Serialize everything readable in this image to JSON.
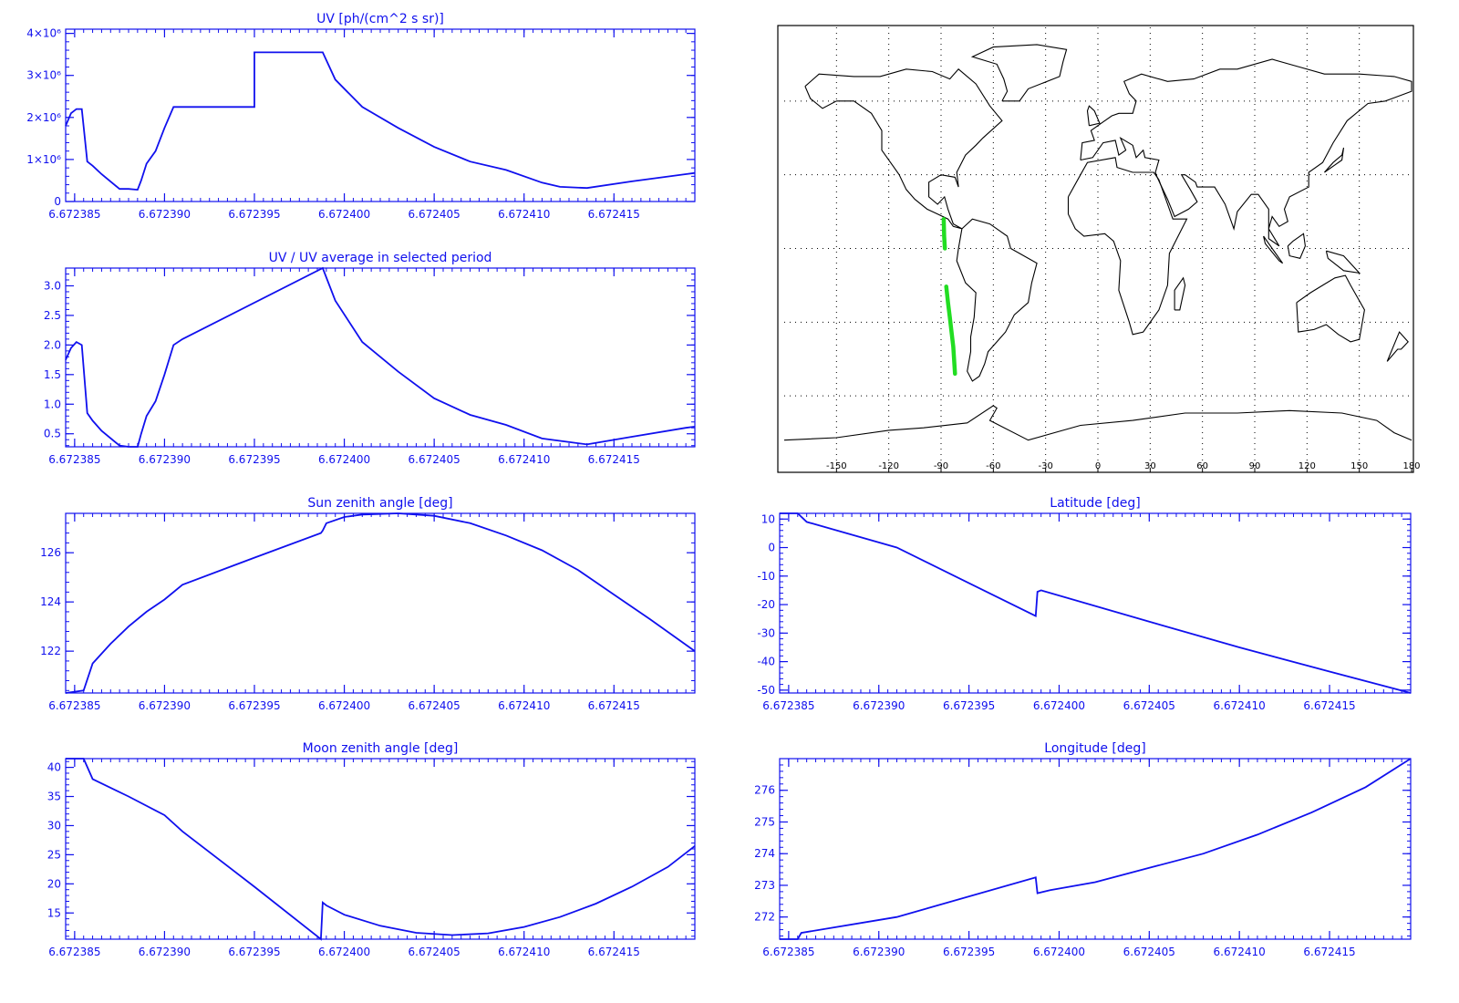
{
  "colors": {
    "line": "#1010ee",
    "axis": "#1010ee",
    "map_line": "#000000",
    "track": "#22dd22",
    "grid": "#000000"
  },
  "x_tick_labels": [
    "6.672385",
    "6.672390",
    "6.672395",
    "6.672400",
    "6.672405",
    "6.672410",
    "6.672415"
  ],
  "chart_data": [
    {
      "id": "uv",
      "type": "line",
      "title": "UV [ph/(cm^2 s sr)]",
      "x": [
        6.6723845,
        6.6723848,
        6.6723851,
        6.6723854,
        6.6723857,
        6.672386,
        6.6723865,
        6.6723875,
        6.672388,
        6.6723885,
        6.6723887,
        6.672389,
        6.6723895,
        6.67239,
        6.6723905,
        6.672391,
        6.672395,
        6.672395,
        6.6723988,
        6.6723995,
        6.672401,
        6.672403,
        6.672405,
        6.672407,
        6.672409,
        6.672411,
        6.672412,
        6.6724135,
        6.672416,
        6.672419,
        6.6724195
      ],
      "y": [
        1800000.0,
        2100000.0,
        2200000.0,
        2200000.0,
        950000.0,
        850000.0,
        650000.0,
        300000.0,
        300000.0,
        280000.0,
        500000.0,
        900000.0,
        1200000.0,
        1750000.0,
        2250000.0,
        2250000.0,
        2250000.0,
        3550000.0,
        3550000.0,
        2900000.0,
        2250000.0,
        1750000.0,
        1300000.0,
        950000.0,
        750000.0,
        450000.0,
        350000.0,
        320000.0,
        480000.0,
        650000.0,
        680000.0
      ],
      "xlim": [
        6.6723845,
        6.6724195
      ],
      "ylim": [
        0,
        4100000.0
      ],
      "yticks": [
        0,
        1000000.0,
        2000000.0,
        3000000.0,
        4000000.0
      ],
      "ytick_labels": [
        "0",
        "1×10⁶",
        "2×10⁶",
        "3×10⁶",
        "4×10⁶"
      ]
    },
    {
      "id": "uvratio",
      "type": "line",
      "title": "UV / UV average in selected period",
      "x": [
        6.6723845,
        6.6723848,
        6.6723851,
        6.6723854,
        6.6723857,
        6.672386,
        6.6723865,
        6.6723875,
        6.672388,
        6.6723885,
        6.6723887,
        6.672389,
        6.6723895,
        6.67239,
        6.6723905,
        6.672391,
        6.6723988,
        6.6723995,
        6.672401,
        6.672403,
        6.672405,
        6.672407,
        6.672409,
        6.672411,
        6.672412,
        6.6724135,
        6.672416,
        6.672419,
        6.6724195
      ],
      "y": [
        1.75,
        1.95,
        2.05,
        2.0,
        0.85,
        0.72,
        0.55,
        0.3,
        0.28,
        0.28,
        0.5,
        0.8,
        1.05,
        1.5,
        2.0,
        2.1,
        3.3,
        2.75,
        2.05,
        1.55,
        1.1,
        0.82,
        0.65,
        0.42,
        0.38,
        0.32,
        0.45,
        0.6,
        0.62
      ],
      "xlim": [
        6.6723845,
        6.6724195
      ],
      "ylim": [
        0.28,
        3.3
      ],
      "yticks": [
        0.5,
        1.0,
        1.5,
        2.0,
        2.5,
        3.0
      ],
      "ytick_labels": [
        "0.5",
        "1.0",
        "1.5",
        "2.0",
        "2.5",
        "3.0"
      ]
    },
    {
      "id": "sunzen",
      "type": "line",
      "title": "Sun zenith angle [deg]",
      "x": [
        6.6723845,
        6.6723855,
        6.672386,
        6.672387,
        6.672388,
        6.672389,
        6.67239,
        6.672391,
        6.672395,
        6.6723987,
        6.6723988,
        6.672399,
        6.6724,
        6.672401,
        6.672403,
        6.672405,
        6.672407,
        6.672409,
        6.672411,
        6.672413,
        6.672415,
        6.672417,
        6.6724195
      ],
      "y": [
        120.3,
        120.4,
        121.5,
        122.3,
        123.0,
        123.6,
        124.1,
        124.7,
        125.8,
        126.8,
        126.9,
        127.2,
        127.45,
        127.55,
        127.6,
        127.5,
        127.2,
        126.7,
        126.1,
        125.3,
        124.3,
        123.3,
        122.0
      ],
      "xlim": [
        6.6723845,
        6.6724195
      ],
      "ylim": [
        120.3,
        127.6
      ],
      "yticks": [
        122,
        124,
        126
      ],
      "ytick_labels": [
        "122",
        "124",
        "126"
      ]
    },
    {
      "id": "moonzen",
      "type": "line",
      "title": "Moon zenith angle [deg]",
      "x": [
        6.6723845,
        6.6723855,
        6.672386,
        6.672388,
        6.67239,
        6.672391,
        6.672395,
        6.6723987,
        6.6723988,
        6.672399,
        6.6724,
        6.672402,
        6.672404,
        6.672406,
        6.672408,
        6.67241,
        6.672412,
        6.672414,
        6.672416,
        6.672418,
        6.6724195
      ],
      "y": [
        41.5,
        41.5,
        38.0,
        35.0,
        31.8,
        29.0,
        19.5,
        10.5,
        16.8,
        16.3,
        14.7,
        12.8,
        11.6,
        11.2,
        11.5,
        12.6,
        14.3,
        16.6,
        19.5,
        22.9,
        26.5
      ],
      "xlim": [
        6.6723845,
        6.6724195
      ],
      "ylim": [
        10.5,
        41.5
      ],
      "yticks": [
        15,
        20,
        25,
        30,
        35,
        40
      ],
      "ytick_labels": [
        "15",
        "20",
        "25",
        "30",
        "35",
        "40"
      ]
    },
    {
      "id": "lat",
      "type": "line",
      "title": "Latitude [deg]",
      "x": [
        6.6723845,
        6.6723855,
        6.672386,
        6.672391,
        6.6723987,
        6.6723988,
        6.672399,
        6.672405,
        6.67241,
        6.672415,
        6.6724195
      ],
      "y": [
        12.0,
        12.0,
        9.0,
        0.0,
        -24.0,
        -15.5,
        -15.0,
        -26.0,
        -35.0,
        -43.5,
        -51.0
      ],
      "xlim": [
        6.6723845,
        6.6724195
      ],
      "ylim": [
        -51.0,
        12.0
      ],
      "yticks": [
        -50,
        -40,
        -30,
        -20,
        -10,
        0,
        10
      ],
      "ytick_labels": [
        "-50",
        "-40",
        "-30",
        "-20",
        "-10",
        "0",
        "10"
      ]
    },
    {
      "id": "lon",
      "type": "line",
      "title": "Longitude [deg]",
      "x": [
        6.6723845,
        6.6723855,
        6.6723857,
        6.672391,
        6.6723987,
        6.6723988,
        6.6723995,
        6.672402,
        6.672405,
        6.672408,
        6.672411,
        6.672414,
        6.672417,
        6.6724195
      ],
      "y": [
        271.3,
        271.3,
        271.5,
        272.0,
        273.25,
        272.75,
        272.85,
        273.1,
        273.55,
        274.0,
        274.6,
        275.3,
        276.1,
        277.0
      ],
      "xlim": [
        6.6723845,
        6.6724195
      ],
      "ylim": [
        271.3,
        277.0
      ],
      "yticks": [
        272,
        273,
        274,
        275,
        276
      ],
      "ytick_labels": [
        "272",
        "273",
        "274",
        "275",
        "276"
      ]
    }
  ],
  "map": {
    "type": "map",
    "projection": "cylindrical",
    "lon_range": [
      -180,
      180
    ],
    "lat_range": [
      -90,
      90
    ],
    "x_tick_labels": [
      "-150",
      "-120",
      "-90",
      "-60",
      "-30",
      "0",
      "30",
      "60",
      "90",
      "120",
      "150",
      "180"
    ],
    "x_tick_values": [
      -150,
      -120,
      -90,
      -60,
      -30,
      0,
      30,
      60,
      90,
      120,
      150,
      180
    ],
    "grid_lon": [
      -150,
      -120,
      -90,
      -60,
      -30,
      0,
      30,
      60,
      90,
      120,
      150
    ],
    "grid_lat": [
      -60,
      -30,
      0,
      30,
      60
    ],
    "track_segments": [
      {
        "lon": [
          -88.5,
          -88.2,
          -87.8
        ],
        "lat": [
          12.0,
          5.0,
          0.0
        ]
      },
      {
        "lon": [
          -87.0,
          -86.0,
          -85.0,
          -84.0,
          -83.0,
          -82.0
        ],
        "lat": [
          -15.5,
          -22.0,
          -28.0,
          -34.0,
          -40.0,
          -51.0
        ]
      }
    ]
  }
}
